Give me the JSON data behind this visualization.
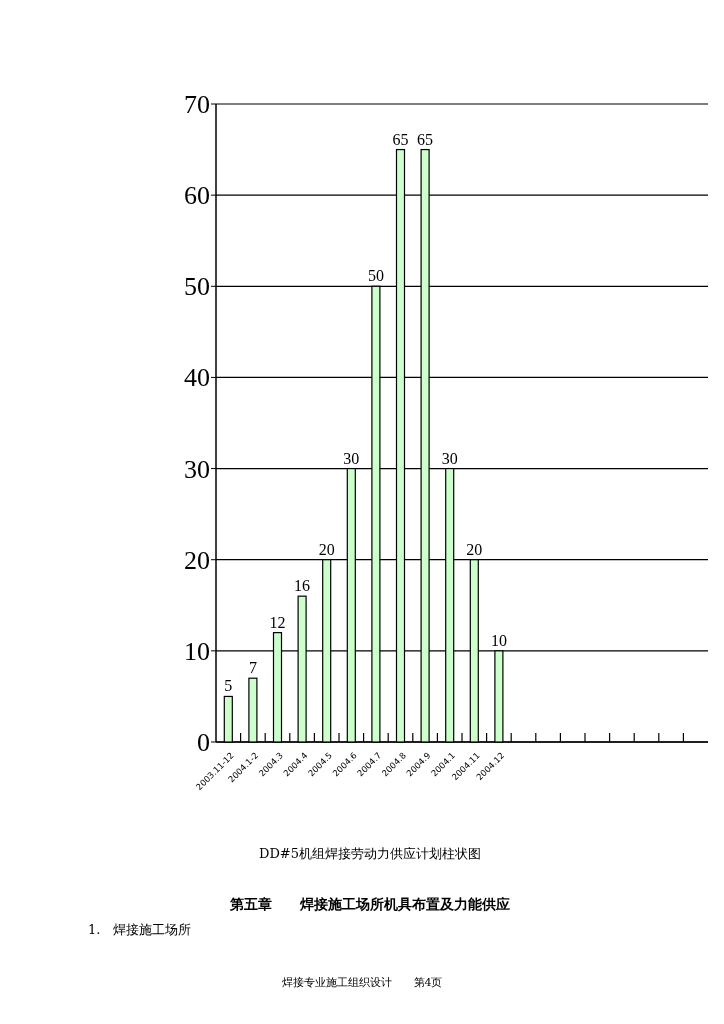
{
  "chart_data": {
    "type": "bar",
    "title": "DD#5机组焊接劳动力供应计划柱状图",
    "categories": [
      "2003.11-12",
      "2004.1-2",
      "2004.3",
      "2004.4",
      "2004.5",
      "2004.6",
      "2004.7",
      "2004.8",
      "2004.9",
      "2004.1",
      "2004.11",
      "2004.12",
      null,
      null,
      null,
      null,
      null,
      null,
      null,
      null
    ],
    "values": [
      5,
      7,
      12,
      16,
      20,
      30,
      50,
      65,
      65,
      30,
      20,
      10,
      null,
      null,
      null,
      null,
      null,
      null,
      null,
      null
    ],
    "color": "#ccffcc",
    "data_labels": true,
    "ylim": [
      0,
      70
    ],
    "yticks": [
      0,
      10,
      20,
      30,
      40,
      50,
      60,
      70
    ],
    "grid": "y",
    "annotations": [
      "第五章　　焊接施工场所机具布置及力能供应",
      "1.　焊接施工场所",
      "焊接专业施工组织设计　　第4页"
    ]
  }
}
